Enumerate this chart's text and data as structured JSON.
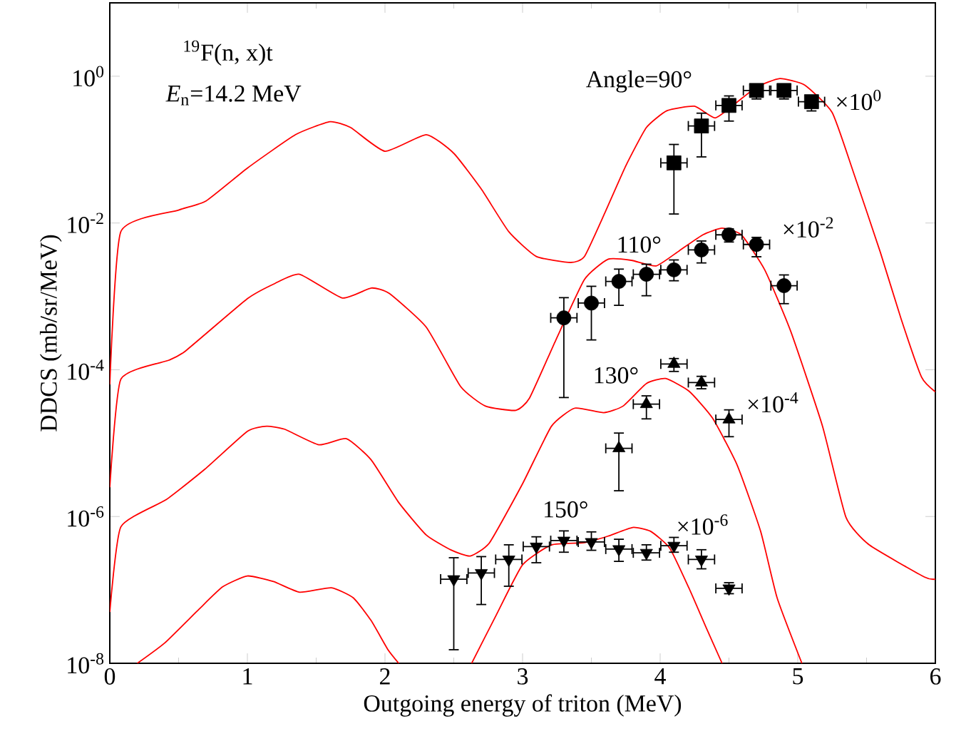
{
  "chart_data": {
    "type": "line",
    "title": "$^{19}$F(n, x)t",
    "subtitle": "*E*$_{n}$=14.2 MeV",
    "xlabel": "Outgoing energy of triton (MeV)",
    "ylabel": "DDCS (mb/sr/MeV)",
    "log": "y",
    "grid": false,
    "xlim": [
      0,
      6
    ],
    "ylim": [
      1e-08,
      10
    ],
    "xticks": [
      0,
      1,
      2,
      3,
      4,
      5,
      6
    ],
    "yticks": [
      {
        "value": 1e-08,
        "label": "10$^{-8}$"
      },
      {
        "value": 1e-06,
        "label": "10$^{-6}$"
      },
      {
        "value": 0.0001,
        "label": "10$^{-4}$"
      },
      {
        "value": 0.01,
        "label": "10$^{-2}$"
      },
      {
        "value": 1,
        "label": "10$^{0}$"
      }
    ],
    "annotations": [
      "Angle=90°",
      "×10$^{0}$",
      "110°",
      "×10$^{-2}$",
      "130°",
      "×10$^{-4}$",
      "150°",
      "×10$^{-6}$"
    ],
    "series": [
      {
        "color": "#ff0000",
        "marker": "none",
        "line_style": "solid",
        "x": [
          0,
          0.08,
          0.5,
          0.7,
          1.0,
          1.35,
          1.6,
          1.75,
          2.0,
          2.3,
          2.5,
          2.7,
          2.9,
          3.1,
          3.35,
          3.45,
          3.6,
          3.75,
          3.9,
          4.05,
          4.25,
          4.4,
          4.55,
          4.7,
          4.87,
          5.05,
          5.25,
          5.4,
          5.6,
          5.75,
          5.9,
          6
        ],
        "values": [
          6.3e-05,
          0.0076,
          0.015,
          0.02,
          0.056,
          0.16,
          0.24,
          0.2,
          0.095,
          0.16,
          0.089,
          0.029,
          0.0076,
          0.0035,
          0.0029,
          0.0035,
          0.014,
          0.06,
          0.2,
          0.34,
          0.39,
          0.27,
          0.43,
          0.71,
          0.93,
          0.76,
          0.32,
          0.052,
          0.004,
          0.0005,
          7.9e-05,
          5e-05
        ]
      },
      {
        "color": "#ff0000",
        "marker": "none",
        "line_style": "solid",
        "x": [
          0,
          0.08,
          0.43,
          0.55,
          1.0,
          1.2,
          1.38,
          1.69,
          1.9,
          2.03,
          2.3,
          2.55,
          2.73,
          2.95,
          3.05,
          3.24,
          3.45,
          3.62,
          3.79,
          3.97,
          4.14,
          4.31,
          4.45,
          4.59,
          4.76,
          4.95,
          5.18,
          5.35,
          5.52,
          5.92,
          6
        ],
        "values": [
          2.5e-06,
          7.4e-05,
          0.000135,
          0.00018,
          0.00093,
          0.0015,
          0.002,
          0.00095,
          0.0013,
          0.0011,
          0.00038,
          5.9e-05,
          3.2e-05,
          2.8e-05,
          4.1e-05,
          0.00025,
          0.0017,
          0.0032,
          0.0031,
          0.0026,
          0.0042,
          0.0069,
          0.0085,
          0.0069,
          0.0023,
          0.00033,
          1.7e-05,
          9.8e-07,
          4.1e-07,
          1.5e-07,
          1.4e-07
        ]
      },
      {
        "color": "#ff0000",
        "marker": "none",
        "line_style": "solid",
        "x": [
          0,
          0.08,
          0.41,
          0.69,
          1.0,
          1.14,
          1.27,
          1.52,
          1.72,
          1.9,
          2.1,
          2.3,
          2.48,
          2.62,
          2.76,
          3.0,
          3.21,
          3.38,
          3.59,
          3.73,
          3.9,
          4.04,
          4.21,
          4.38,
          4.56,
          4.73,
          4.85,
          5.03
        ],
        "values": [
          5e-08,
          7.2e-07,
          1.7e-06,
          4.4e-06,
          1.45e-05,
          1.7e-05,
          1.55e-05,
          9.5e-06,
          1.15e-05,
          5.9e-06,
          1.55e-06,
          5.6e-07,
          3.5e-07,
          2.9e-07,
          4.4e-07,
          2.8e-06,
          1.7e-05,
          3e-05,
          2.6e-05,
          3.2e-05,
          6.5e-05,
          7.6e-05,
          5.1e-05,
          2.2e-05,
          5e-06,
          6.3e-07,
          7.8e-08,
          1e-08
        ]
      },
      {
        "color": "#ff0000",
        "marker": "none",
        "line_style": "solid",
        "x": [
          0.2,
          0.4,
          0.65,
          0.82,
          1.0,
          1.19,
          1.38,
          1.61,
          1.77,
          1.9,
          2.02,
          2.1,
          2.4,
          2.63,
          2.81,
          3.0,
          3.21,
          3.45,
          3.62,
          3.8,
          3.93,
          4.07,
          4.21,
          4.33,
          4.45
        ],
        "values": [
          1e-08,
          1.9e-08,
          5.5e-08,
          1.1e-07,
          1.55e-07,
          1.3e-07,
          9.3e-08,
          1.07e-07,
          7.8e-08,
          3.8e-08,
          1.55e-08,
          1e-08,
          null,
          1e-08,
          4.6e-08,
          2.2e-07,
          4.1e-07,
          4.4e-07,
          5.4e-07,
          7.1e-07,
          6.3e-07,
          3.7e-07,
          1.05e-07,
          3.2e-08,
          1e-08
        ]
      },
      {
        "type": "scatter",
        "color": "#000000",
        "marker": "square",
        "x": [
          4.1,
          4.3,
          4.5,
          4.7,
          4.9,
          5.1
        ],
        "values": [
          0.066,
          0.21,
          0.4,
          0.64,
          0.64,
          0.45
        ],
        "xerrors": [
          0.1,
          0.1,
          0.1,
          0.1,
          0.1,
          0.1
        ],
        "errors": [
          [
            0.013,
            0.12
          ],
          [
            0.078,
            0.32
          ],
          [
            0.24,
            0.55
          ],
          [
            0.48,
            0.74
          ],
          [
            0.48,
            0.76
          ],
          [
            0.33,
            0.55
          ]
        ]
      },
      {
        "type": "scatter",
        "color": "#000000",
        "marker": "circle",
        "x": [
          3.3,
          3.5,
          3.7,
          3.9,
          4.1,
          4.3,
          4.5,
          4.7,
          4.9
        ],
        "values": [
          0.00051,
          0.00081,
          0.0016,
          0.002,
          0.0023,
          0.0043,
          0.0069,
          0.0051,
          0.0014
        ],
        "xerrors": [
          0.1,
          0.1,
          0.1,
          0.1,
          0.1,
          0.1,
          0.1,
          0.1,
          0.1
        ],
        "errors": [
          [
            4.1e-05,
            0.00098
          ],
          [
            0.00025,
            0.0014
          ],
          [
            0.00074,
            0.0024
          ],
          [
            0.001,
            0.0028
          ],
          [
            0.0016,
            0.0032
          ],
          [
            0.0028,
            0.0058
          ],
          [
            0.0054,
            0.0085
          ],
          [
            0.0034,
            0.0065
          ],
          [
            0.00078,
            0.002
          ]
        ]
      },
      {
        "type": "scatter",
        "color": "#000000",
        "marker": "triangle",
        "x": [
          3.7,
          3.9,
          4.1,
          4.3,
          4.5
        ],
        "values": [
          8.5e-06,
          3.4e-05,
          0.00012,
          6.7e-05,
          2.1e-05
        ],
        "xerrors": [
          0.1,
          0.1,
          0.1,
          0.1,
          0.1
        ],
        "errors": [
          [
            2.2e-06,
            1.4e-05
          ],
          [
            2.1e-05,
            4.5e-05
          ],
          [
            9.3e-05,
            0.000145
          ],
          [
            5.4e-05,
            8.3e-05
          ],
          [
            1.2e-05,
            2.9e-05
          ]
        ]
      },
      {
        "type": "scatter",
        "color": "#000000",
        "marker": "triangle-down",
        "x": [
          2.5,
          2.7,
          2.9,
          3.1,
          3.3,
          3.5,
          3.7,
          3.9,
          4.1,
          4.3,
          4.5
        ],
        "values": [
          1.4e-07,
          1.7e-07,
          2.6e-07,
          3.9e-07,
          4.7e-07,
          4.5e-07,
          3.6e-07,
          3.2e-07,
          4e-07,
          2.6e-07,
          1.05e-07
        ],
        "xerrors": [
          0.1,
          0.1,
          0.1,
          0.1,
          0.1,
          0.1,
          0.1,
          0.1,
          0.1,
          0.1,
          0.1
        ],
        "errors": [
          [
            1.5e-08,
            2.8e-07
          ],
          [
            6.2e-08,
            2.9e-07
          ],
          [
            1.1e-07,
            4.2e-07
          ],
          [
            2.3e-07,
            5.4e-07
          ],
          [
            3.2e-07,
            6.5e-07
          ],
          [
            3.4e-07,
            6.3e-07
          ],
          [
            2.4e-07,
            5e-07
          ],
          [
            2.5e-07,
            4.2e-07
          ],
          [
            3.2e-07,
            5.3e-07
          ],
          [
            1.9e-07,
            3.6e-07
          ],
          [
            8.7e-08,
            1.28e-07
          ]
        ]
      }
    ]
  }
}
